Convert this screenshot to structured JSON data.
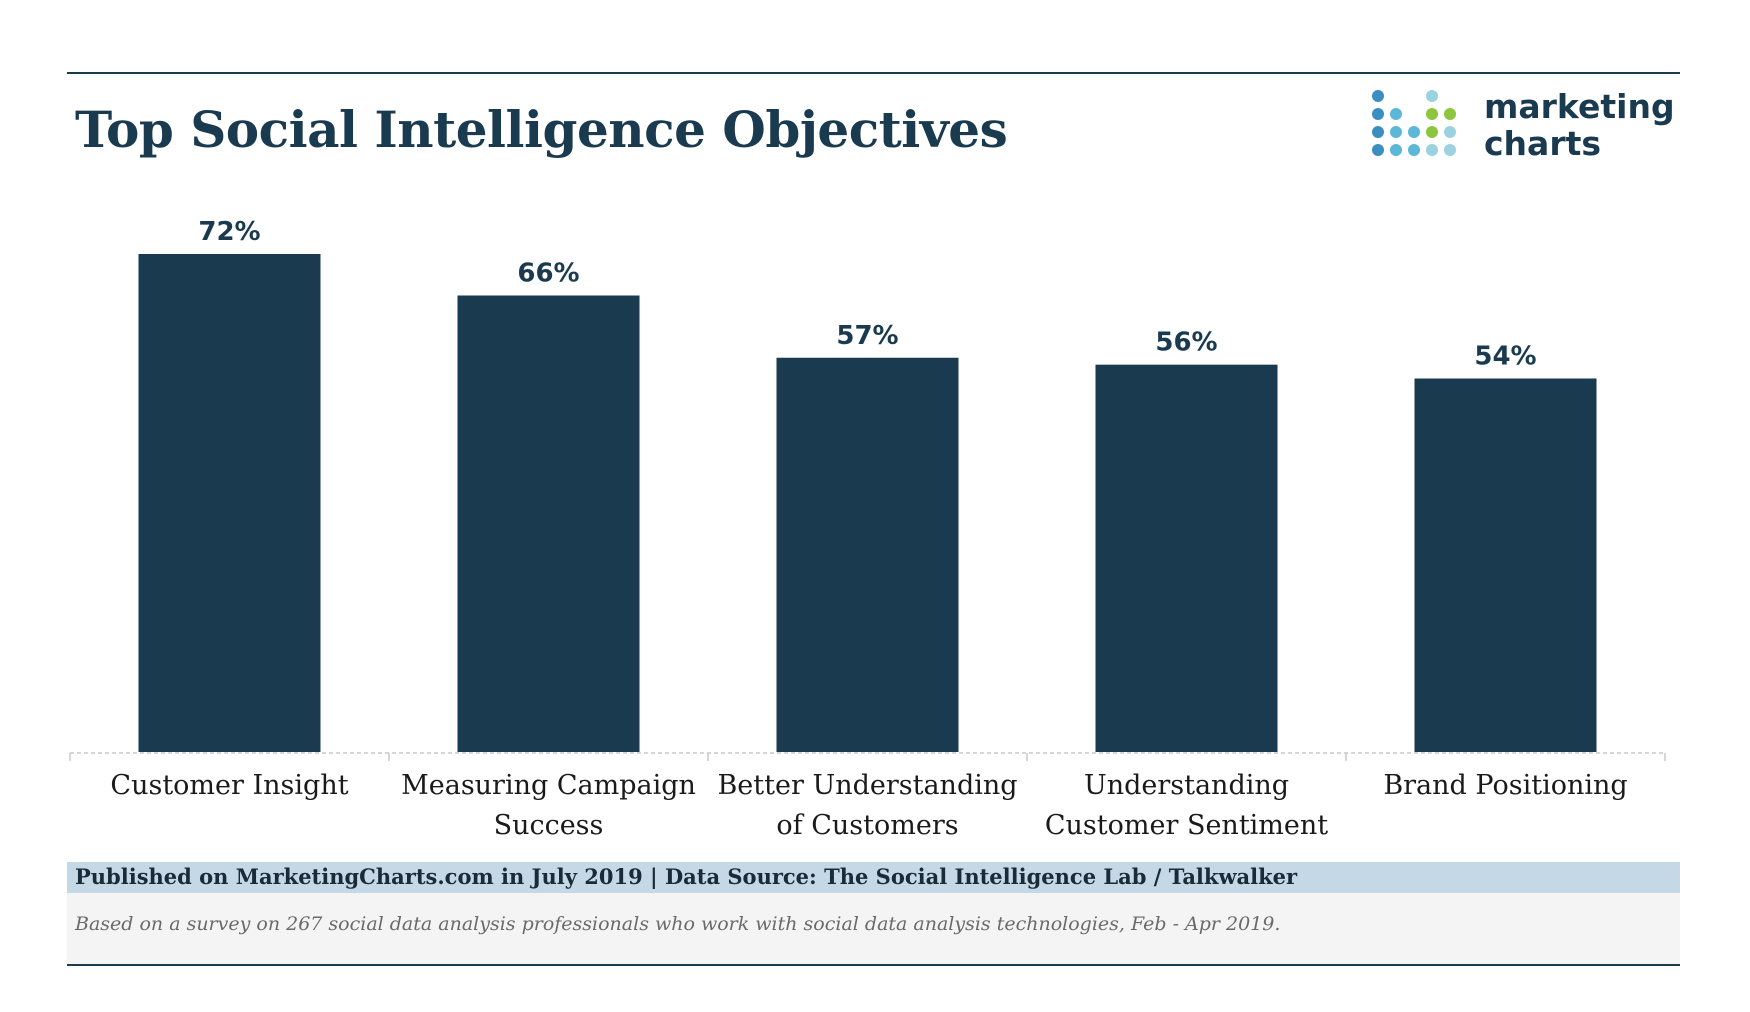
{
  "title": "Top Social Intelligence Objectives",
  "logo": {
    "line1": "marketing",
    "line2": "charts"
  },
  "chart_data": {
    "type": "bar",
    "categories": [
      [
        "Customer Insight"
      ],
      [
        "Measuring Campaign",
        "Success"
      ],
      [
        "Better Understanding",
        "of Customers"
      ],
      [
        "Understanding",
        "Customer Sentiment"
      ],
      [
        "Brand Positioning"
      ]
    ],
    "values": [
      72,
      66,
      57,
      56,
      54
    ],
    "value_labels": [
      "72%",
      "66%",
      "57%",
      "56%",
      "54%"
    ],
    "ylim": [
      0,
      72
    ],
    "grid": false,
    "bar_color": "#1a3a4f"
  },
  "footer": {
    "source": "Published on MarketingCharts.com in July 2019 | Data Source: The Social Intelligence Lab / Talkwalker",
    "note": "Based on a survey on 267 social data analysis professionals who work with social data analysis technologies, Feb - Apr 2019."
  },
  "colors": {
    "primary": "#1a3a4f",
    "footer_band": "#c4d8e6",
    "logo_dots": [
      "#3a8ec0",
      "#5bb8d8",
      "#8cc63f",
      "#9ad3df"
    ]
  }
}
